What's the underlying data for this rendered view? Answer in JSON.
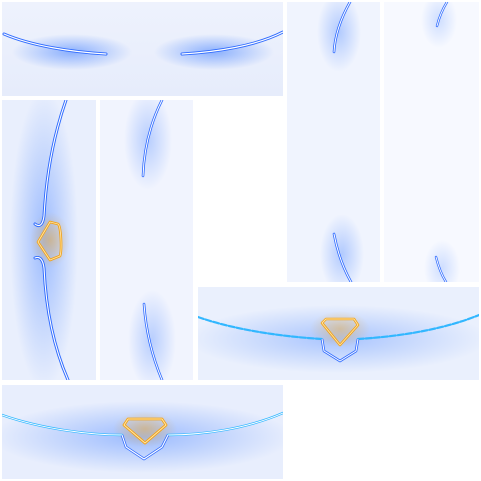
{
  "atlas": {
    "background": "#ffffff",
    "tile_fill": "#e9effd",
    "tile_fill_light": "#f4f7ff",
    "glow_color": "#3d7cff",
    "line_color": "#2f6bff",
    "highlight_color": "#ffffff",
    "badge_color": "#f0a21c",
    "badge_highlight": "#ffe6a8",
    "cyan_line": "#32b7ff",
    "tiles": [
      {
        "id": "arc-ends-wide",
        "icon": "curved-line-ends-icon"
      },
      {
        "id": "arc-ends-tall-right",
        "icon": "curved-line-ends-icon"
      },
      {
        "id": "arc-ends-tall-faint",
        "icon": "curved-line-ends-icon"
      },
      {
        "id": "arc-badge-tall",
        "icon": "chevron-badge-icon"
      },
      {
        "id": "arc-ends-tall-left",
        "icon": "curved-line-ends-icon"
      },
      {
        "id": "arc-badge-wide-right",
        "icon": "chevron-badge-icon"
      },
      {
        "id": "arc-badge-wide-bottom",
        "icon": "chevron-badge-icon"
      }
    ]
  }
}
